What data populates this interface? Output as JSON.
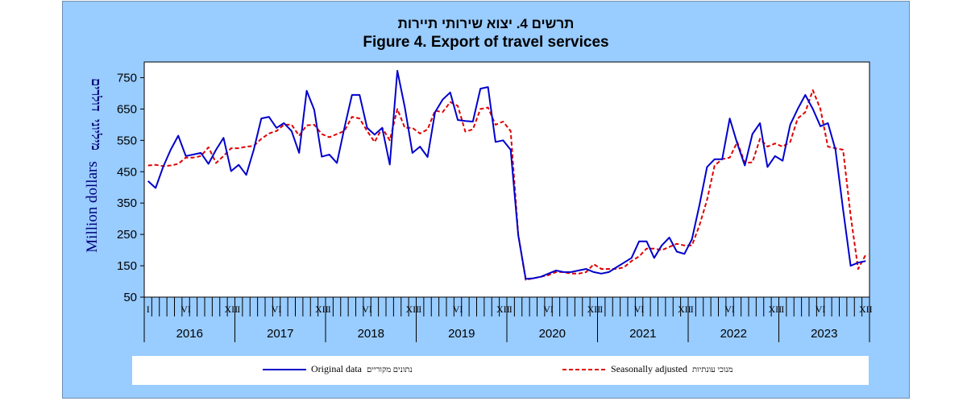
{
  "titles": {
    "hebrew": "תרשים 4. יצוא שירותי תיירות",
    "english": "Figure 4. Export of travel services"
  },
  "colors": {
    "panel_bg": "#99ccff",
    "original": "#0000cc",
    "seasonal": "#e00000"
  },
  "chart_data": {
    "type": "line",
    "title": "Figure 4. Export of travel services",
    "title_hebrew": "תרשים 4. יצוא שירותי תיירות",
    "ylabel": "Million dollars",
    "ylabel_hebrew": "מיליוני דולרים",
    "xlabel": "",
    "ylim": [
      50,
      800
    ],
    "yticks": [
      50,
      150,
      250,
      350,
      450,
      550,
      650,
      750
    ],
    "grid": false,
    "legend_position": "bottom",
    "years": [
      "2016",
      "2017",
      "2018",
      "2019",
      "2020",
      "2021",
      "2022",
      "2023"
    ],
    "month_tick_labels": [
      "I",
      "VI",
      "XII"
    ],
    "x_unit": "month index from January 2016 (0 = Jan 2016, 95 = Dec 2023)",
    "series": [
      {
        "name": "Original data",
        "name_hebrew": "נתונים מקוריים",
        "color": "#0000cc",
        "style": "solid",
        "values": [
          420,
          398,
          465,
          520,
          565,
          500,
          505,
          510,
          475,
          520,
          558,
          452,
          472,
          440,
          520,
          620,
          625,
          590,
          605,
          580,
          510,
          708,
          648,
          498,
          505,
          478,
          590,
          695,
          695,
          590,
          568,
          590,
          473,
          772,
          655,
          510,
          530,
          497,
          640,
          680,
          703,
          615,
          612,
          610,
          715,
          720,
          545,
          550,
          520,
          248,
          108,
          110,
          115,
          125,
          135,
          130,
          130,
          135,
          140,
          130,
          125,
          130,
          145,
          160,
          175,
          228,
          228,
          175,
          215,
          240,
          195,
          188,
          235,
          345,
          465,
          490,
          490,
          620,
          540,
          470,
          570,
          605,
          465,
          500,
          485,
          600,
          650,
          695,
          650,
          595,
          605,
          520,
          330,
          150,
          160,
          165
        ]
      },
      {
        "name": "Seasonally adjusted",
        "name_hebrew": "מנוכי עונתיות",
        "color": "#e00000",
        "style": "dashed",
        "values": [
          470,
          472,
          468,
          470,
          475,
          495,
          495,
          500,
          528,
          478,
          500,
          525,
          525,
          530,
          532,
          555,
          572,
          580,
          600,
          600,
          565,
          598,
          600,
          570,
          560,
          570,
          580,
          625,
          620,
          580,
          545,
          590,
          550,
          650,
          590,
          590,
          572,
          585,
          645,
          640,
          672,
          660,
          578,
          585,
          650,
          655,
          600,
          610,
          580,
          250,
          105,
          110,
          115,
          120,
          130,
          130,
          125,
          125,
          130,
          155,
          140,
          140,
          140,
          145,
          165,
          180,
          205,
          205,
          200,
          210,
          220,
          215,
          215,
          280,
          360,
          470,
          490,
          495,
          545,
          478,
          480,
          555,
          530,
          540,
          530,
          545,
          620,
          640,
          710,
          650,
          530,
          525,
          520,
          310,
          140,
          185
        ]
      }
    ]
  },
  "legend": {
    "original_en": "Original data",
    "original_he": "נתונים מקוריים",
    "seasonal_en": "Seasonally adjusted",
    "seasonal_he": "מנוכי עונתיות"
  }
}
